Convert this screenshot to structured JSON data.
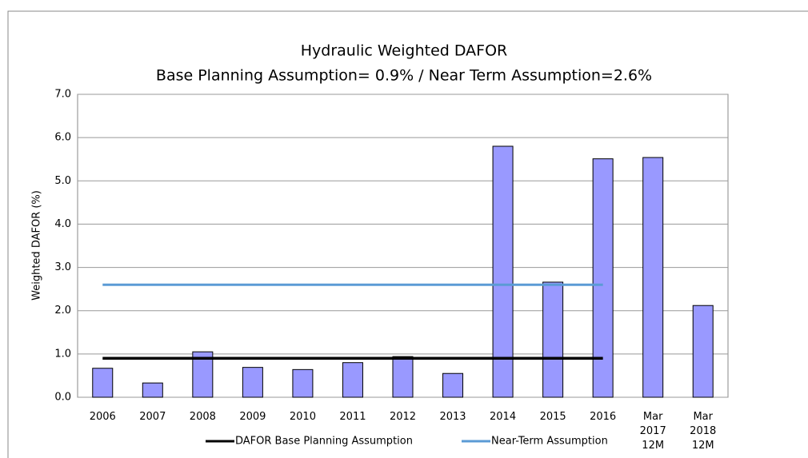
{
  "chart_data": {
    "type": "bar",
    "title": "Hydraulic Weighted DAFOR",
    "subtitle": "Base Planning Assumption= 0.9% / Near Term Assumption=2.6%",
    "y_label": "Weighted DAFOR (%)",
    "categories": [
      "2006",
      "2007",
      "2008",
      "2009",
      "2010",
      "2011",
      "2012",
      "2013",
      "2014",
      "2015",
      "2016",
      "Mar 2017 12M",
      "Mar 2018 12M"
    ],
    "values": [
      0.67,
      0.33,
      1.05,
      0.69,
      0.64,
      0.8,
      0.94,
      0.55,
      5.8,
      2.66,
      5.51,
      5.54,
      2.12
    ],
    "color": "#9999ff",
    "series": [
      {
        "name": "DAFOR Base Planning Assumption",
        "color": "#000000",
        "values": [
          0.9,
          0.9,
          0.9,
          0.9,
          0.9,
          0.9,
          0.9,
          0.9,
          0.9,
          0.9,
          0.9,
          null,
          null
        ]
      },
      {
        "name": "Near-Term Assumption",
        "color": "#5b9bd5",
        "values": [
          2.6,
          2.6,
          2.6,
          2.6,
          2.6,
          2.6,
          2.6,
          2.6,
          2.6,
          2.6,
          2.6,
          null,
          null
        ]
      }
    ],
    "ylim": [
      0,
      7
    ],
    "yticks": [
      {
        "value": 0,
        "label": "0.0"
      },
      {
        "value": 1,
        "label": "1.0"
      },
      {
        "value": 2,
        "label": "2.0"
      },
      {
        "value": 3,
        "label": "3.0"
      },
      {
        "value": 4,
        "label": "4.0"
      },
      {
        "value": 5,
        "label": "5.0"
      },
      {
        "value": 6,
        "label": "6.0"
      },
      {
        "value": 7,
        "label": "7.0"
      }
    ],
    "grid": true,
    "legend": "bottom"
  }
}
